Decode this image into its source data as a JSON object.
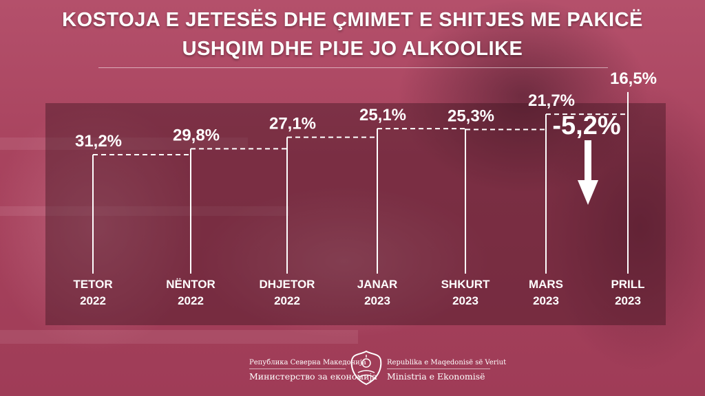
{
  "title": {
    "line1": "KOSTOJA E JETESËS DHE  ÇMIMET E SHITJES ME PAKICË",
    "line2": "USHQIM DHE PIJE JO ALKOOLIKE"
  },
  "chart_data": {
    "type": "line",
    "style": "step",
    "categories": [
      "TETOR 2022",
      "NËNTOR 2022",
      "DHJETOR 2022",
      "JANAR 2023",
      "SHKURT 2023",
      "MARS 2023",
      "PRILL 2023"
    ],
    "months": [
      "TETOR",
      "NËNTOR",
      "DHJETOR",
      "JANAR",
      "SHKURT",
      "MARS",
      "PRILL"
    ],
    "years": [
      "2022",
      "2022",
      "2022",
      "2023",
      "2023",
      "2023",
      "2023"
    ],
    "values": [
      31.2,
      29.8,
      27.1,
      25.1,
      25.3,
      21.7,
      16.5
    ],
    "value_labels": [
      "31,2%",
      "29,8%",
      "27,1%",
      "25,1%",
      "25,3%",
      "21,7%",
      "16,5%"
    ],
    "annotation": {
      "text": "-5,2%",
      "arrow": "down"
    },
    "colors": {
      "line": "#ffffff",
      "text": "#ffffff"
    }
  },
  "footer": {
    "left_line1": "Република Северна Македонија",
    "left_line2": "Министерство за економија",
    "right_line1": "Republika e Maqedonisë së Veriut",
    "right_line2": "Ministria e Ekonomisë",
    "emblem": "coat-of-arms-icon"
  }
}
